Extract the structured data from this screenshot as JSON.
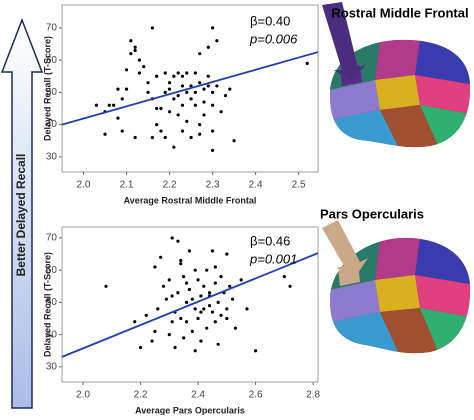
{
  "side_label": "Better Delayed Recall",
  "chart_data": [
    {
      "type": "scatter",
      "region": "Rostral Middle Frontal",
      "stat_lines": [
        "β=0.40",
        "p=0.006"
      ],
      "x_label": "Average Rostral Middle Frontal",
      "y_label": "Delayed Recall (T-Score)",
      "xlim": [
        1.95,
        2.545
      ],
      "ylim": [
        25.3,
        77.1
      ],
      "xticks": [
        {
          "value": 2.0,
          "label": "2.0"
        },
        {
          "value": 2.1,
          "label": "2.1"
        },
        {
          "value": 2.2,
          "label": "2.2"
        },
        {
          "value": 2.3,
          "label": "2.3"
        },
        {
          "value": 2.4,
          "label": "2.4"
        },
        {
          "value": 2.5,
          "label": "2.5"
        }
      ],
      "yticks": [
        30,
        40,
        50,
        60,
        70
      ],
      "point_color": "#000000",
      "fit_color": "#1f3fb0",
      "arrow_color": "#4b2d7f",
      "points": {
        "x": [
          2.03,
          2.05,
          2.06,
          2.07,
          2.08,
          2.09,
          2.1,
          2.1,
          2.11,
          2.11,
          2.12,
          2.12,
          2.13,
          2.13,
          2.14,
          2.15,
          2.15,
          2.16,
          2.16,
          2.16,
          2.17,
          2.17,
          2.18,
          2.18,
          2.19,
          2.19,
          2.19,
          2.2,
          2.2,
          2.2,
          2.21,
          2.21,
          2.21,
          2.22,
          2.22,
          2.22,
          2.23,
          2.23,
          2.23,
          2.23,
          2.24,
          2.24,
          2.24,
          2.25,
          2.25,
          2.25,
          2.26,
          2.26,
          2.26,
          2.27,
          2.27,
          2.27,
          2.28,
          2.28,
          2.28,
          2.29,
          2.29,
          2.29,
          2.3,
          2.3,
          2.3,
          2.3,
          2.31,
          2.31,
          2.32,
          2.33,
          2.34,
          2.35,
          2.05,
          2.09,
          2.52,
          2.12,
          2.27,
          2.3,
          2.17,
          2.08
        ],
        "y": [
          46,
          37,
          46,
          46,
          51,
          48,
          51,
          57,
          62,
          66,
          63,
          36,
          60,
          56,
          58,
          50,
          53,
          48,
          70,
          36,
          55,
          45,
          45,
          38,
          50,
          56,
          36,
          51,
          53,
          44,
          55,
          33,
          48,
          56,
          49,
          43,
          55,
          52,
          46,
          38,
          56,
          50,
          41,
          48,
          52,
          36,
          56,
          46,
          50,
          53,
          40,
          62,
          51,
          47,
          43,
          64,
          55,
          52,
          70,
          50,
          46,
          32,
          52,
          66,
          44,
          49,
          51,
          35,
          44,
          38,
          59,
          64,
          37,
          38,
          40,
          42
        ]
      },
      "fit": {
        "x": [
          1.95,
          2.545
        ],
        "y": [
          40,
          62.5
        ]
      }
    },
    {
      "type": "scatter",
      "region": "Pars Opercularis",
      "stat_lines": [
        "β=0.46",
        "p=0.001"
      ],
      "x_label": "Average Pars Opercularis",
      "y_label": "Delayed Recall (T-Score)",
      "xlim": [
        1.927,
        2.817
      ],
      "ylim": [
        25.3,
        73.4
      ],
      "xticks": [
        {
          "value": 2.0,
          "label": "2.0"
        },
        {
          "value": 2.2,
          "label": "2.2"
        },
        {
          "value": 2.4,
          "label": "2.4"
        },
        {
          "value": 2.6,
          "label": "2.6"
        },
        {
          "value": 2.8,
          "label": "2.8"
        }
      ],
      "yticks": [
        30,
        40,
        50,
        60,
        70
      ],
      "point_color": "#000000",
      "fit_color": "#1f3fb0",
      "arrow_color": "#c9a98a",
      "points": {
        "x": [
          2.08,
          2.18,
          2.2,
          2.22,
          2.24,
          2.25,
          2.26,
          2.27,
          2.28,
          2.29,
          2.3,
          2.3,
          2.31,
          2.31,
          2.32,
          2.32,
          2.33,
          2.33,
          2.34,
          2.34,
          2.35,
          2.35,
          2.36,
          2.36,
          2.37,
          2.37,
          2.38,
          2.38,
          2.39,
          2.39,
          2.4,
          2.4,
          2.41,
          2.41,
          2.42,
          2.42,
          2.43,
          2.43,
          2.44,
          2.44,
          2.45,
          2.45,
          2.46,
          2.46,
          2.47,
          2.47,
          2.48,
          2.48,
          2.49,
          2.5,
          2.5,
          2.51,
          2.52,
          2.53,
          2.55,
          2.57,
          2.6,
          2.7,
          2.72,
          2.25,
          2.31,
          2.36,
          2.41,
          2.46,
          2.5,
          2.34,
          2.39,
          2.44
        ],
        "y": [
          55,
          44,
          36,
          46,
          38,
          61,
          48,
          64,
          55,
          51,
          57,
          40,
          52,
          70,
          47,
          36,
          53,
          69,
          62,
          45,
          58,
          39,
          50,
          44,
          66,
          54,
          51,
          41,
          48,
          60,
          57,
          45,
          52,
          38,
          55,
          48,
          60,
          42,
          49,
          53,
          47,
          66,
          56,
          44,
          50,
          37,
          58,
          46,
          53,
          65,
          48,
          55,
          51,
          42,
          57,
          48,
          35,
          58,
          55,
          41,
          44,
          56,
          47,
          61,
          45,
          63,
          35,
          52
        ]
      },
      "fit": {
        "x": [
          1.927,
          2.817
        ],
        "y": [
          33.1,
          65.3
        ]
      }
    }
  ]
}
